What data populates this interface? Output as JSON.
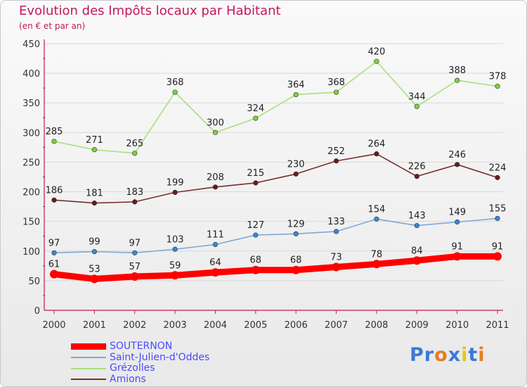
{
  "header": {
    "title": "Evolution des Impôts locaux par Habitant",
    "subtitle": "(en € et par an)"
  },
  "brand": {
    "text": "Proxiti",
    "letters": [
      "P",
      "r",
      "o",
      "x",
      "i",
      "t",
      "i"
    ],
    "letter_colors": [
      "#3a7bd5",
      "#3a7bd5",
      "#e67e22",
      "#3a7bd5",
      "#e6c619",
      "#3a7bd5",
      "#e67e22"
    ]
  },
  "chart_data": {
    "type": "line",
    "title": "Evolution des Impôts locaux par Habitant",
    "subtitle": "(en € et par an)",
    "xlabel": "",
    "ylabel": "",
    "x": [
      "2000",
      "2001",
      "2002",
      "2003",
      "2004",
      "2005",
      "2006",
      "2007",
      "2008",
      "2009",
      "2010",
      "2011"
    ],
    "ylim": [
      0,
      450
    ],
    "yticks": [
      "0",
      "50",
      "100",
      "150",
      "200",
      "250",
      "300",
      "350",
      "400",
      "450"
    ],
    "grid": true,
    "legend_position": "bottom-left",
    "series": [
      {
        "name": "SOUTERNON",
        "color": "#ff0000",
        "marker_color": "#ff0000",
        "bold": true,
        "values": [
          61,
          53,
          57,
          59,
          64,
          68,
          68,
          73,
          78,
          84,
          91,
          91
        ],
        "labels": [
          "61",
          "53",
          "57",
          "59",
          "64",
          "68",
          "68",
          "73",
          "78",
          "84",
          "91",
          "91"
        ]
      },
      {
        "name": "Saint-Julien-d'Oddes",
        "color": "#7fa8d6",
        "marker_color": "#3a86d8",
        "bold": false,
        "values": [
          97,
          99,
          97,
          103,
          111,
          127,
          129,
          133,
          154,
          143,
          149,
          155
        ],
        "labels": [
          "97",
          "99",
          "97",
          "103",
          "111",
          "127",
          "129",
          "133",
          "154",
          "143",
          "149",
          "155"
        ]
      },
      {
        "name": "Grézolles",
        "color": "#a9e07c",
        "marker_color": "#7fd13b",
        "bold": false,
        "values": [
          285,
          271,
          265,
          368,
          300,
          324,
          364,
          368,
          420,
          344,
          388,
          378
        ],
        "labels": [
          "285",
          "271",
          "265",
          "368",
          "300",
          "324",
          "364",
          "368",
          "420",
          "344",
          "388",
          "378"
        ]
      },
      {
        "name": "Amions",
        "color": "#7a2e2e",
        "marker_color": "#6b1a1a",
        "bold": false,
        "values": [
          186,
          181,
          183,
          199,
          208,
          215,
          230,
          252,
          264,
          226,
          246,
          224
        ],
        "labels": [
          "186",
          "181",
          "183",
          "199",
          "208",
          "215",
          "230",
          "252",
          "264",
          "226",
          "246",
          "224"
        ]
      }
    ]
  }
}
